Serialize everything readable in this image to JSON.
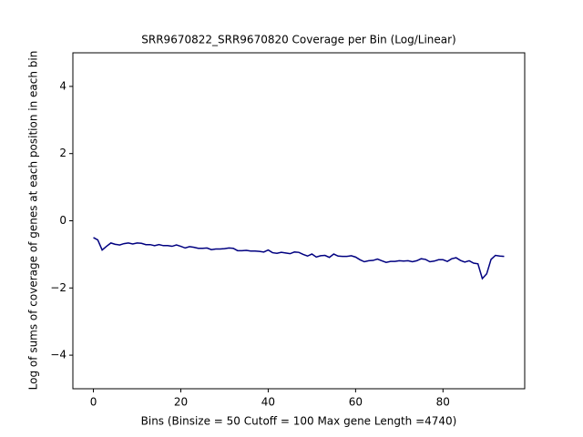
{
  "chart_data": {
    "type": "line",
    "title": "SRR9670822_SRR9670820 Coverage per Bin (Log/Linear)",
    "x_label": "Bins  (Binsize = 50 Cutoff = 100 Max gene Length =4740)",
    "y_label": "Log of sums of coverage of genes at each position in each bin",
    "x": [
      0,
      1,
      2,
      3,
      4,
      5,
      6,
      7,
      8,
      9,
      10,
      11,
      12,
      13,
      14,
      15,
      16,
      17,
      18,
      19,
      20,
      21,
      22,
      23,
      24,
      25,
      26,
      27,
      28,
      29,
      30,
      31,
      32,
      33,
      34,
      35,
      36,
      37,
      38,
      39,
      40,
      41,
      42,
      43,
      44,
      45,
      46,
      47,
      48,
      49,
      50,
      51,
      52,
      53,
      54,
      55,
      56,
      57,
      58,
      59,
      60,
      61,
      62,
      63,
      64,
      65,
      66,
      67,
      68,
      69,
      70,
      71,
      72,
      73,
      74,
      75,
      76,
      77,
      78,
      79,
      80,
      81,
      82,
      83,
      84,
      85,
      86,
      87,
      88,
      89,
      90,
      91,
      92,
      93,
      94
    ],
    "series": [
      {
        "color": "#000080",
        "values": [
          -0.5,
          -0.57,
          -0.87,
          -0.76,
          -0.66,
          -0.7,
          -0.72,
          -0.68,
          -0.66,
          -0.69,
          -0.66,
          -0.67,
          -0.71,
          -0.71,
          -0.74,
          -0.71,
          -0.74,
          -0.74,
          -0.76,
          -0.72,
          -0.76,
          -0.81,
          -0.77,
          -0.79,
          -0.82,
          -0.82,
          -0.81,
          -0.86,
          -0.84,
          -0.84,
          -0.83,
          -0.81,
          -0.82,
          -0.89,
          -0.89,
          -0.88,
          -0.9,
          -0.9,
          -0.91,
          -0.93,
          -0.87,
          -0.95,
          -0.97,
          -0.94,
          -0.96,
          -0.98,
          -0.93,
          -0.94,
          -1.0,
          -1.05,
          -0.99,
          -1.08,
          -1.04,
          -1.03,
          -1.09,
          -0.99,
          -1.05,
          -1.06,
          -1.06,
          -1.04,
          -1.08,
          -1.16,
          -1.22,
          -1.19,
          -1.18,
          -1.14,
          -1.19,
          -1.24,
          -1.21,
          -1.21,
          -1.19,
          -1.2,
          -1.19,
          -1.22,
          -1.19,
          -1.13,
          -1.15,
          -1.22,
          -1.2,
          -1.16,
          -1.16,
          -1.21,
          -1.13,
          -1.1,
          -1.18,
          -1.23,
          -1.19,
          -1.26,
          -1.28,
          -1.72,
          -1.58,
          -1.15,
          -1.03,
          -1.05,
          -1.06
        ]
      }
    ],
    "xlim": [
      -4.7,
      98.7
    ],
    "ylim": [
      -5,
      5
    ],
    "xticks": [
      0,
      20,
      40,
      60,
      80
    ],
    "yticks": [
      {
        "value": -4,
        "label": "−4"
      },
      {
        "value": -2,
        "label": "−2"
      },
      0,
      2,
      4
    ]
  }
}
